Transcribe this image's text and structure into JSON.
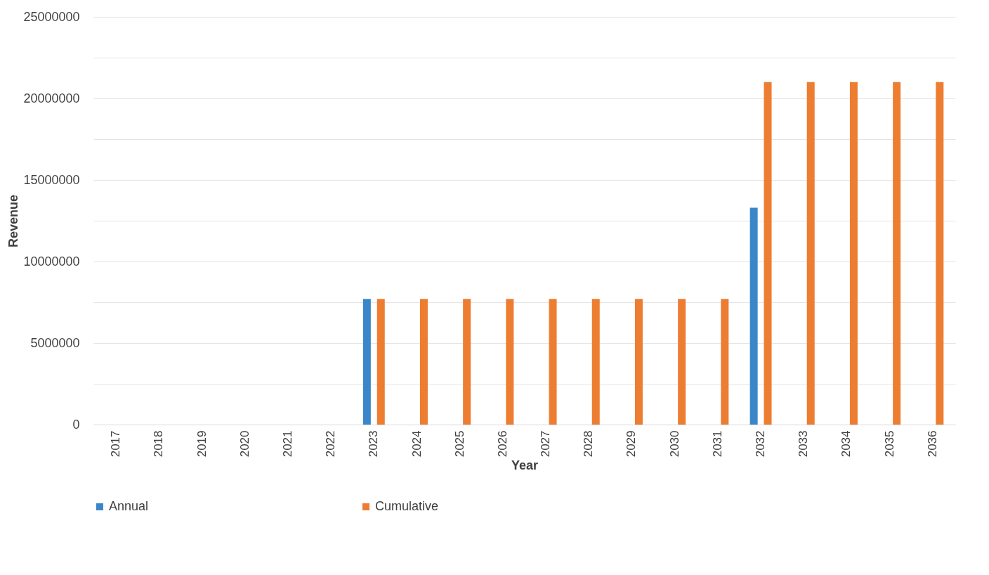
{
  "chart_data": {
    "type": "bar",
    "xlabel": "Year",
    "ylabel": "Revenue",
    "categories": [
      "2017",
      "2018",
      "2019",
      "2020",
      "2021",
      "2022",
      "2023",
      "2024",
      "2025",
      "2026",
      "2027",
      "2028",
      "2029",
      "2030",
      "2031",
      "2032",
      "2033",
      "2034",
      "2035",
      "2036"
    ],
    "series": [
      {
        "name": "Annual",
        "color": "#3a86c8",
        "values": [
          0,
          0,
          0,
          0,
          0,
          0,
          7700000,
          0,
          0,
          0,
          0,
          0,
          0,
          0,
          0,
          13300000,
          0,
          0,
          0,
          0
        ]
      },
      {
        "name": "Cumulative",
        "color": "#ed7d31",
        "values": [
          0,
          0,
          0,
          0,
          0,
          0,
          7700000,
          7700000,
          7700000,
          7700000,
          7700000,
          7700000,
          7700000,
          7700000,
          7700000,
          21000000,
          21000000,
          21000000,
          21000000,
          21000000
        ]
      }
    ],
    "ylim": [
      0,
      25000000
    ],
    "yticks": [
      0,
      {
        "value": 2500000,
        "label": null
      },
      5000000,
      {
        "value": 7500000,
        "label": null
      },
      10000000,
      {
        "value": 12500000,
        "label": null
      },
      15000000,
      {
        "value": 17500000,
        "label": null
      },
      20000000,
      {
        "value": 22500000,
        "label": null
      },
      25000000
    ],
    "grid": "y",
    "legend": "bottom"
  }
}
